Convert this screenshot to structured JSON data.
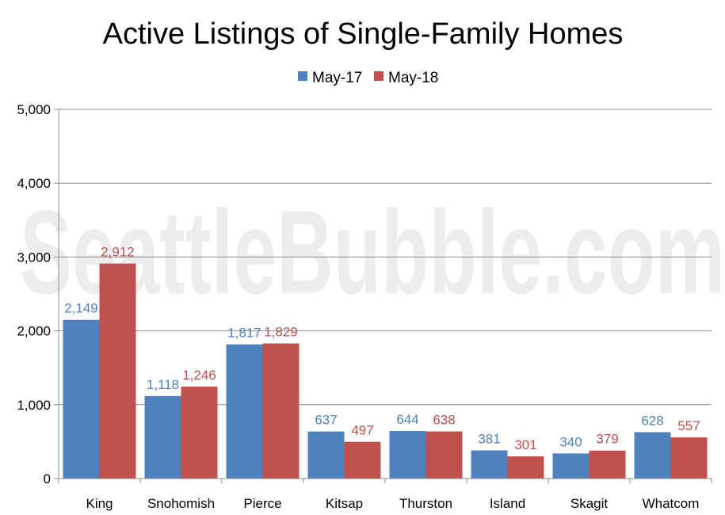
{
  "watermark": "SeattleBubble.com",
  "chart_data": {
    "type": "bar",
    "title": "Active Listings of Single-Family Homes",
    "xlabel": "",
    "ylabel": "",
    "categories": [
      "King",
      "Snohomish",
      "Pierce",
      "Kitsap",
      "Thurston",
      "Island",
      "Skagit",
      "Whatcom"
    ],
    "series": [
      {
        "name": "May-17",
        "color": "#4f81bd",
        "values": [
          2149,
          1118,
          1817,
          637,
          644,
          381,
          340,
          628
        ],
        "labels": [
          "2,149",
          "1,118",
          "1,817",
          "637",
          "644",
          "381",
          "340",
          "628"
        ]
      },
      {
        "name": "May-18",
        "color": "#c0504d",
        "values": [
          2912,
          1246,
          1829,
          497,
          638,
          301,
          379,
          557
        ],
        "labels": [
          "2,912",
          "1,246",
          "1,829",
          "497",
          "638",
          "301",
          "379",
          "557"
        ]
      }
    ],
    "ylim": [
      0,
      5000
    ],
    "yticks": [
      0,
      1000,
      2000,
      3000,
      4000,
      5000
    ],
    "ytick_labels": [
      "0",
      "1,000",
      "2,000",
      "3,000",
      "4,000",
      "5,000"
    ],
    "grid": true,
    "legend": "top-center"
  }
}
